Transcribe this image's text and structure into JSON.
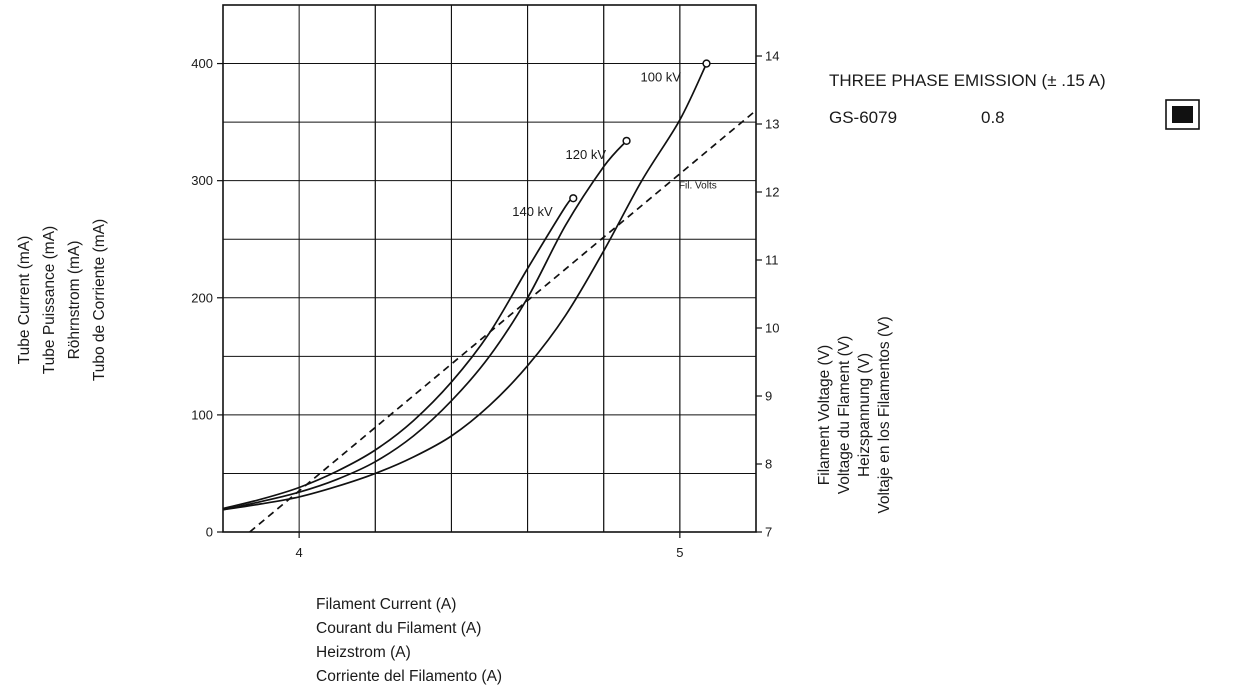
{
  "chart_data": {
    "type": "line",
    "title": "",
    "x": {
      "ticks": [
        4,
        5
      ],
      "range": [
        3.8,
        5.2
      ],
      "label_lines": [
        "Filament Current (A)",
        "Courant du Filament (A)",
        "Heizstrom (A)",
        "Corriente del Filamento (A)"
      ]
    },
    "y_left": {
      "ticks": [
        0,
        100,
        200,
        300,
        400
      ],
      "range": [
        0,
        450
      ],
      "label_lines": [
        "Tube Current (mA)",
        "Tube Puissance (mA)",
        "Röhrnstrom (mA)",
        "Tubo de Corriente (mA)"
      ]
    },
    "y_right": {
      "ticks": [
        7,
        8,
        9,
        10,
        11,
        12,
        13,
        14
      ],
      "range": [
        7,
        14.75
      ],
      "label_lines": [
        "Filament Voltage (V)",
        "Voltage du Flament  (V)",
        "Heizspannung (V)",
        "Voltaje en los Filamentos (V)"
      ]
    },
    "grid": true,
    "series": [
      {
        "name": "100 kV",
        "axis": "left",
        "style": "solid",
        "end_marker": true,
        "points": [
          [
            3.8,
            19
          ],
          [
            3.9,
            24
          ],
          [
            4.0,
            30
          ],
          [
            4.1,
            39
          ],
          [
            4.2,
            50
          ],
          [
            4.3,
            64
          ],
          [
            4.4,
            82
          ],
          [
            4.5,
            108
          ],
          [
            4.6,
            142
          ],
          [
            4.7,
            185
          ],
          [
            4.8,
            240
          ],
          [
            4.9,
            300
          ],
          [
            5.0,
            352
          ],
          [
            5.07,
            400
          ]
        ]
      },
      {
        "name": "120 kV",
        "axis": "left",
        "style": "solid",
        "end_marker": true,
        "points": [
          [
            3.8,
            19
          ],
          [
            3.9,
            26
          ],
          [
            4.0,
            34
          ],
          [
            4.1,
            45
          ],
          [
            4.2,
            60
          ],
          [
            4.3,
            82
          ],
          [
            4.4,
            112
          ],
          [
            4.5,
            150
          ],
          [
            4.6,
            200
          ],
          [
            4.7,
            262
          ],
          [
            4.8,
            312
          ],
          [
            4.86,
            334
          ]
        ]
      },
      {
        "name": "140 kV",
        "axis": "left",
        "style": "solid",
        "end_marker": true,
        "points": [
          [
            3.8,
            20
          ],
          [
            3.9,
            28
          ],
          [
            4.0,
            38
          ],
          [
            4.1,
            52
          ],
          [
            4.2,
            70
          ],
          [
            4.3,
            95
          ],
          [
            4.4,
            128
          ],
          [
            4.5,
            170
          ],
          [
            4.6,
            225
          ],
          [
            4.7,
            278
          ],
          [
            4.72,
            285
          ]
        ]
      },
      {
        "name": "Fil. Volts",
        "axis": "right",
        "style": "dashed",
        "end_marker": false,
        "points": [
          [
            3.87,
            7.0
          ],
          [
            5.2,
            13.2
          ]
        ]
      }
    ]
  },
  "legend": {
    "title": "THREE PHASE EMISSION (± .15 A)",
    "item_name": "GS-6079",
    "item_value": "0.8"
  }
}
